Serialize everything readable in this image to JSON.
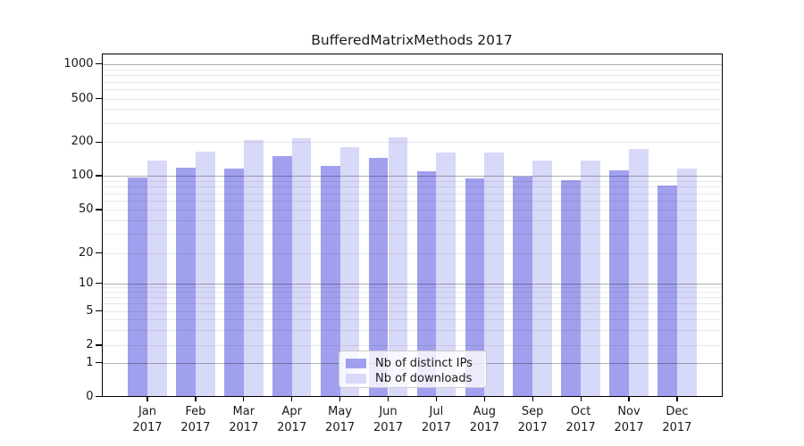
{
  "title": "BufferedMatrixMethods 2017",
  "chart_data": {
    "type": "bar",
    "title": "BufferedMatrixMethods 2017",
    "categories": [
      "Jan 2017",
      "Feb 2017",
      "Mar 2017",
      "Apr 2017",
      "May 2017",
      "Jun 2017",
      "Jul 2017",
      "Aug 2017",
      "Sep 2017",
      "Oct 2017",
      "Nov 2017",
      "Dec 2017"
    ],
    "series": [
      {
        "name": "Nb of distinct IPs",
        "color": "#a0a0ee",
        "values": [
          97,
          118,
          116,
          150,
          122,
          145,
          109,
          95,
          98,
          92,
          112,
          82
        ]
      },
      {
        "name": "Nb of downloads",
        "color": "#d8d8f8",
        "values": [
          137,
          164,
          208,
          218,
          181,
          222,
          162,
          160,
          137,
          137,
          175,
          115
        ]
      }
    ],
    "xlabel": "",
    "ylabel": "",
    "yscale": "symlog",
    "ylim": [
      0,
      1000
    ],
    "ytick_labels": [
      "0",
      "1",
      "2",
      "5",
      "10",
      "20",
      "50",
      "100",
      "200",
      "500",
      "1000"
    ],
    "ytick_values": [
      0,
      1,
      2,
      5,
      10,
      20,
      50,
      100,
      200,
      500,
      1000
    ],
    "grid": true,
    "legend_position": "lower center"
  }
}
